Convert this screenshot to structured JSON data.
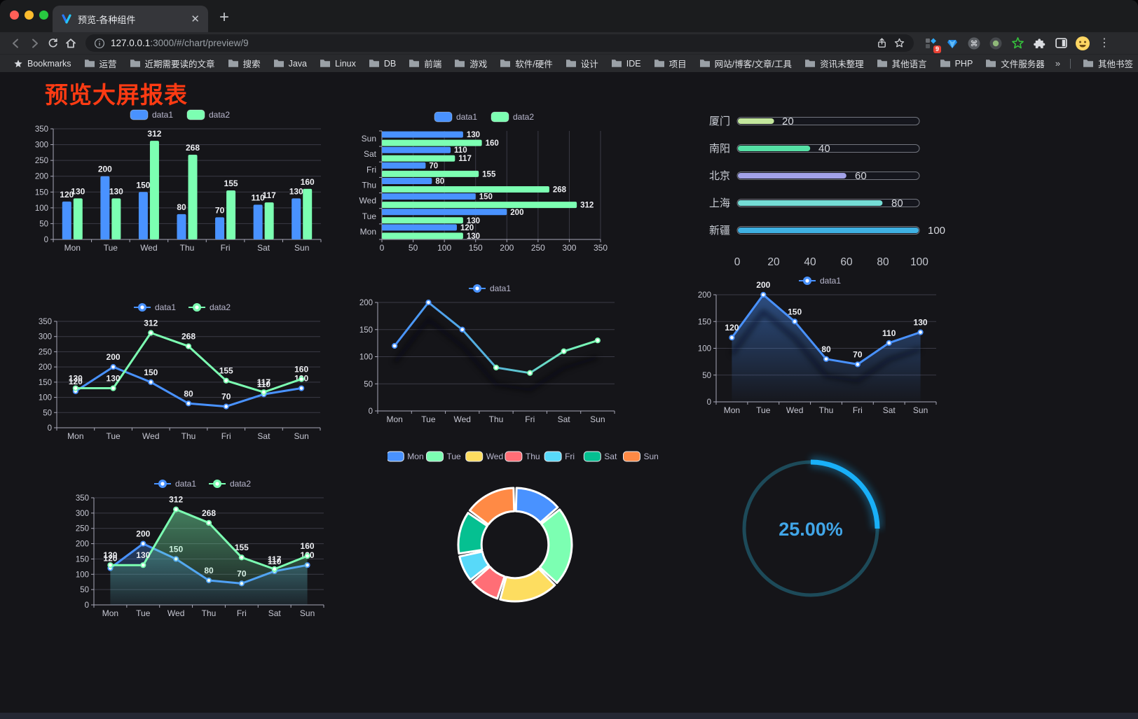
{
  "browser": {
    "traffic_lights": [
      "#ff5f57",
      "#febc2e",
      "#28c840"
    ],
    "tab_title": "预览-各种组件",
    "url_host": "127.0.0.1",
    "url_rest": ":3000/#/chart/preview/9",
    "extension_badge": "9",
    "bookmarks_label": "Bookmarks",
    "bookmarks": [
      "运营",
      "近期需要读的文章",
      "搜索",
      "Java",
      "Linux",
      "DB",
      "前端",
      "游戏",
      "软件/硬件",
      "设计",
      "IDE",
      "项目",
      "网站/博客/文章/工具",
      "资讯未整理",
      "其他语言",
      "PHP",
      "文件服务器"
    ],
    "bookmarks_overflow": "»",
    "other_bookmarks": "其他书签"
  },
  "page": {
    "title": "预览大屏报表",
    "title_color": "#ff3b13",
    "background": "#151519"
  },
  "chart_data": [
    {
      "id": "bar-grouped",
      "type": "bar",
      "categories": [
        "Mon",
        "Tue",
        "Wed",
        "Thu",
        "Fri",
        "Sat",
        "Sun"
      ],
      "series": [
        {
          "name": "data1",
          "color": "#4992ff",
          "values": [
            120,
            200,
            150,
            80,
            70,
            110,
            130
          ],
          "labels": true
        },
        {
          "name": "data2",
          "color": "#7cffb2",
          "values": [
            130,
            130,
            312,
            268,
            155,
            117,
            160
          ],
          "labels": true
        }
      ],
      "ylim": [
        0,
        350
      ],
      "ytick_step": 50,
      "legend_position": "top",
      "grid": true
    },
    {
      "id": "bar-horizontal",
      "type": "hbar",
      "categories": [
        "Sun",
        "Sat",
        "Fri",
        "Thu",
        "Wed",
        "Tue",
        "Mon"
      ],
      "series": [
        {
          "name": "data1",
          "color": "#4992ff",
          "values": [
            130,
            110,
            70,
            80,
            150,
            200,
            120
          ],
          "labels": true
        },
        {
          "name": "data2",
          "color": "#7cffb2",
          "values": [
            160,
            117,
            155,
            268,
            312,
            130,
            130
          ],
          "labels": true
        }
      ],
      "xlim": [
        0,
        350
      ],
      "xtick_step": 50,
      "legend_position": "top",
      "grid": true,
      "note": "categories listed top to bottom"
    },
    {
      "id": "progress-list",
      "type": "progress",
      "items": [
        {
          "label": "厦门",
          "value": 20,
          "color": "#c3e79d"
        },
        {
          "label": "南阳",
          "value": 40,
          "color": "#55e0a5"
        },
        {
          "label": "北京",
          "value": 60,
          "color": "#a2a2e8"
        },
        {
          "label": "上海",
          "value": 80,
          "color": "#75ddd6"
        },
        {
          "label": "新疆",
          "value": 100,
          "color": "#3fb1e3"
        }
      ],
      "xlim": [
        0,
        100
      ],
      "xticks": [
        0,
        20,
        40,
        60,
        80,
        100
      ]
    },
    {
      "id": "line-two-series",
      "type": "line",
      "categories": [
        "Mon",
        "Tue",
        "Wed",
        "Thu",
        "Fri",
        "Sat",
        "Sun"
      ],
      "series": [
        {
          "name": "data1",
          "color": "#4992ff",
          "values": [
            120,
            200,
            150,
            80,
            70,
            110,
            130
          ],
          "labels": true
        },
        {
          "name": "data2",
          "color": "#7cffb2",
          "values": [
            130,
            130,
            312,
            268,
            155,
            117,
            160
          ],
          "labels": true
        }
      ],
      "ylim": [
        0,
        350
      ],
      "ytick_step": 50,
      "legend_position": "top"
    },
    {
      "id": "line-gradient-shadow",
      "type": "line",
      "categories": [
        "Mon",
        "Tue",
        "Wed",
        "Thu",
        "Fri",
        "Sat",
        "Sun"
      ],
      "series": [
        {
          "name": "data1",
          "gradient": [
            "#4992ff",
            "#56b6d9",
            "#7cffb2"
          ],
          "values": [
            120,
            200,
            150,
            80,
            70,
            110,
            130
          ],
          "shadow": true
        }
      ],
      "ylim": [
        0,
        200
      ],
      "ytick_step": 50,
      "legend_position": "top"
    },
    {
      "id": "area-single",
      "type": "line",
      "categories": [
        "Mon",
        "Tue",
        "Wed",
        "Thu",
        "Fri",
        "Sat",
        "Sun"
      ],
      "series": [
        {
          "name": "data1",
          "color": "#4992ff",
          "values": [
            120,
            200,
            150,
            80,
            70,
            110,
            130
          ],
          "labels": true,
          "shadow": true,
          "area_fill": [
            "rgba(73,146,255,0.45)",
            "rgba(73,146,255,0.02)"
          ]
        }
      ],
      "ylim": [
        0,
        200
      ],
      "ytick_step": 50,
      "legend_position": "top"
    },
    {
      "id": "area-double",
      "type": "line",
      "categories": [
        "Mon",
        "Tue",
        "Wed",
        "Thu",
        "Fri",
        "Sat",
        "Sun"
      ],
      "series": [
        {
          "name": "data1",
          "color": "#4992ff",
          "values": [
            120,
            200,
            150,
            80,
            70,
            110,
            130
          ],
          "labels": true,
          "area_fill": [
            "rgba(73,146,255,0.32)",
            "rgba(73,146,255,0.05)"
          ]
        },
        {
          "name": "data2",
          "color": "#7cffb2",
          "values": [
            130,
            130,
            312,
            268,
            155,
            117,
            160
          ],
          "labels": true,
          "area_fill": [
            "rgba(124,255,178,0.45)",
            "rgba(124,255,178,0.04)"
          ]
        }
      ],
      "ylim": [
        0,
        350
      ],
      "ytick_step": 50,
      "legend_position": "top"
    },
    {
      "id": "pie-donut",
      "type": "pie",
      "items": [
        {
          "label": "Mon",
          "value": 120,
          "color": "#4992ff"
        },
        {
          "label": "Tue",
          "value": 200,
          "color": "#7cffb2"
        },
        {
          "label": "Wed",
          "value": 150,
          "color": "#fddd60"
        },
        {
          "label": "Thu",
          "value": 80,
          "color": "#ff6e76"
        },
        {
          "label": "Fri",
          "value": 70,
          "color": "#58d9f9"
        },
        {
          "label": "Sat",
          "value": 110,
          "color": "#05c091"
        },
        {
          "label": "Sun",
          "value": 130,
          "color": "#ff8a45"
        }
      ],
      "inner_radius_ratio": 0.59,
      "legend_position": "top"
    },
    {
      "id": "gauge-progress",
      "type": "gauge",
      "percent": 25,
      "value_label": "25.00%",
      "arc_color": "#19b0f8",
      "track_color": "#1d4a59",
      "text_color": "#41a6e8"
    }
  ]
}
